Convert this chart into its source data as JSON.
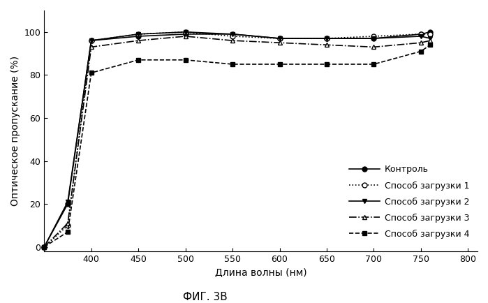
{
  "series": [
    {
      "label": "Контроль",
      "x": [
        350,
        375,
        400,
        450,
        500,
        550,
        600,
        650,
        700,
        750,
        760
      ],
      "y": [
        0,
        20,
        96,
        98,
        99,
        99,
        97,
        97,
        97,
        99,
        100
      ],
      "linestyle": "-",
      "marker": "o",
      "markerfacecolor": "black",
      "markeredgecolor": "black",
      "color": "black",
      "markersize": 5
    },
    {
      "label": "Способ загрузки 1",
      "x": [
        350,
        375,
        400,
        450,
        500,
        550,
        600,
        650,
        700,
        750,
        760
      ],
      "y": [
        0,
        10,
        96,
        99,
        100,
        98,
        97,
        97,
        98,
        99,
        99
      ],
      "linestyle": ":",
      "marker": "o",
      "markerfacecolor": "white",
      "markeredgecolor": "black",
      "color": "black",
      "markersize": 5
    },
    {
      "label": "Способ загрузки 2",
      "x": [
        350,
        375,
        400,
        450,
        500,
        550,
        600,
        650,
        700,
        750,
        760
      ],
      "y": [
        0,
        21,
        96,
        99,
        100,
        99,
        97,
        97,
        97,
        98,
        97
      ],
      "linestyle": "-",
      "marker": "v",
      "markerfacecolor": "black",
      "markeredgecolor": "black",
      "color": "black",
      "markersize": 5
    },
    {
      "label": "Способ загрузки 3",
      "x": [
        350,
        375,
        400,
        450,
        500,
        550,
        600,
        650,
        700,
        750,
        760
      ],
      "y": [
        0,
        11,
        93,
        96,
        98,
        96,
        95,
        94,
        93,
        95,
        96
      ],
      "linestyle": "-.",
      "marker": "^",
      "markerfacecolor": "white",
      "markeredgecolor": "black",
      "color": "black",
      "markersize": 5
    },
    {
      "label": "Способ загрузки 4",
      "x": [
        350,
        375,
        400,
        450,
        500,
        550,
        600,
        650,
        700,
        750,
        760
      ],
      "y": [
        0,
        7,
        81,
        87,
        87,
        85,
        85,
        85,
        85,
        91,
        94
      ],
      "linestyle": "--",
      "marker": "s",
      "markerfacecolor": "black",
      "markeredgecolor": "black",
      "color": "black",
      "markersize": 5
    }
  ],
  "xlabel": "Длина волны (нм)",
  "ylabel": "Оптическое пропускание (%)",
  "title": "ФИГ. 3В",
  "xlim": [
    350,
    810
  ],
  "ylim": [
    -2,
    110
  ],
  "xticks": [
    400,
    450,
    500,
    550,
    600,
    650,
    700,
    750,
    800
  ],
  "yticks": [
    0,
    20,
    40,
    60,
    80,
    100
  ]
}
